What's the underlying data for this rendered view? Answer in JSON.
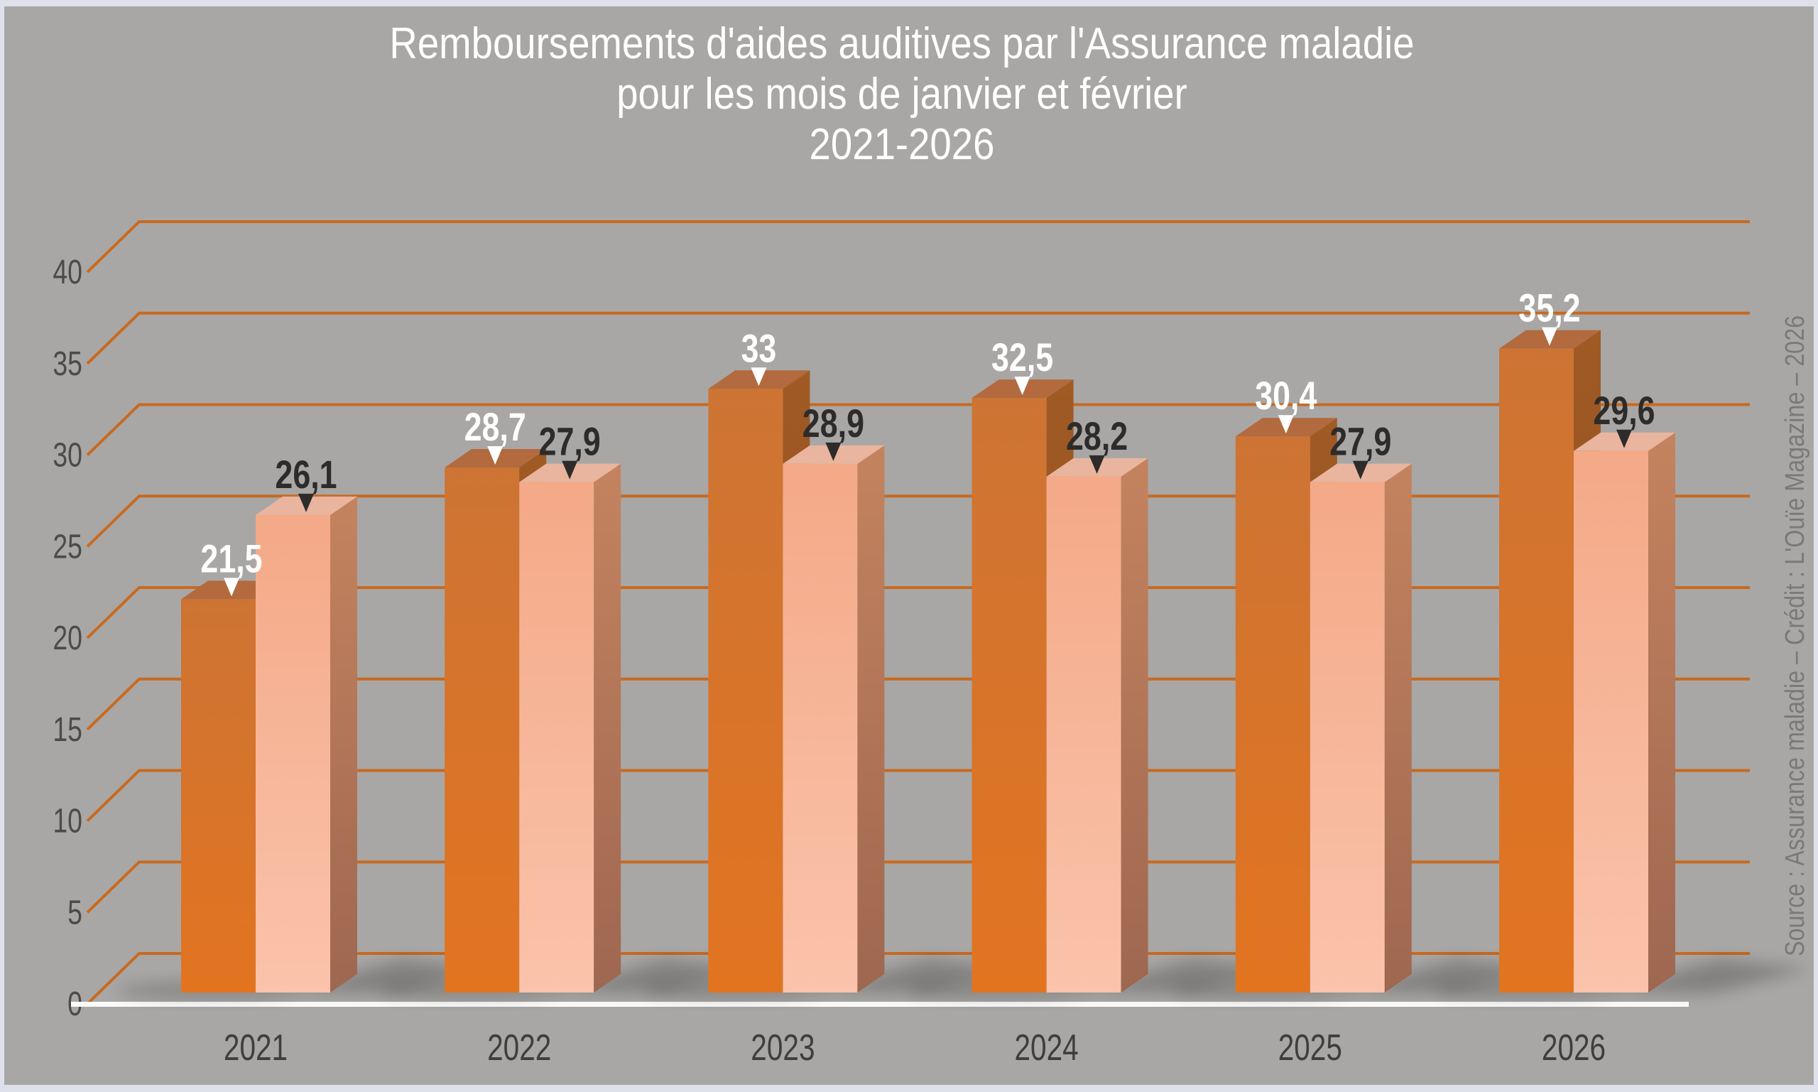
{
  "title": {
    "lines": [
      "Remboursements d'aides auditives par l'Assurance maladie",
      "pour les mois de janvier et février",
      "2021-2026"
    ]
  },
  "source_note": "Source : Assurance maladie – Crédit : L'Ouïe Magazine – 2026",
  "chart_data": {
    "type": "bar",
    "projection": "pseudo-3d",
    "title": "Remboursements d'aides auditives par l'Assurance maladie pour les mois de janvier et février 2021-2026",
    "categories": [
      "2021",
      "2022",
      "2023",
      "2024",
      "2025",
      "2026"
    ],
    "series": [
      {
        "name": "janvier",
        "values": [
          21.5,
          28.7,
          33,
          32.5,
          30.4,
          35.2
        ],
        "labels": [
          "21,5",
          "28,7",
          "33",
          "32,5",
          "30,4",
          "35,2"
        ],
        "label_color": "#ffffff"
      },
      {
        "name": "février",
        "values": [
          26.1,
          27.9,
          28.9,
          28.2,
          27.9,
          29.6
        ],
        "labels": [
          "26,1",
          "27,9",
          "28,9",
          "28,2",
          "27,9",
          "29,6"
        ],
        "label_color": "#2d2c2a"
      }
    ],
    "y_axis": {
      "min": 0,
      "max": 40,
      "step": 5,
      "tick_labels": [
        "0",
        "5",
        "10",
        "15",
        "20",
        "25",
        "30",
        "35",
        "40"
      ]
    },
    "x_label": "",
    "y_label": "",
    "gridlines": true,
    "legend_position": "none"
  },
  "colors": {
    "background": "#a8a7a5",
    "frame": "#dfe1ea",
    "gridline": "#c9691f",
    "baseline": "#fbfbf9",
    "tick_label": "#4b4b4b",
    "year_label": "#3e3e3e",
    "title_color": "#ffffff",
    "source_color": "#797979",
    "shadow": "#000000",
    "series1_front_top": "#cd7434",
    "series1_front_bottom": "#e27420",
    "series1_top": "#b26a3e",
    "series1_side_top": "#a05a24",
    "series1_side_bottom": "#8a4a1c",
    "series2_front_top": "#f4a987",
    "series2_front_bottom": "#fac3ab",
    "series2_top": "#e9b59e",
    "series2_side_top": "#c4835f",
    "series2_side_bottom": "#9e6750"
  }
}
